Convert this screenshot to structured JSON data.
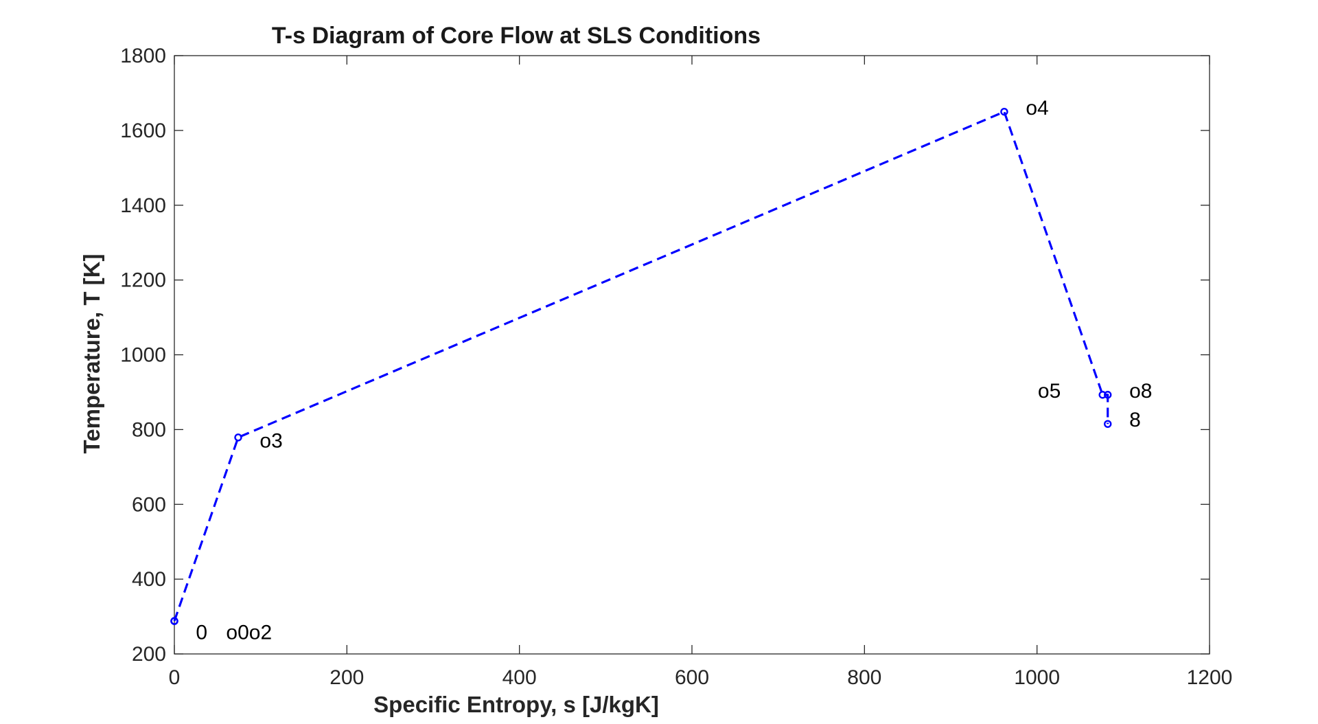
{
  "chart_data": {
    "type": "line",
    "title": "T-s Diagram of Core Flow at SLS Conditions",
    "xlabel": "Specific Entropy, s [J/kgK]",
    "ylabel": "Temperature, T [K]",
    "xlim": [
      0,
      1200
    ],
    "ylim": [
      200,
      1800
    ],
    "xticks": [
      "0",
      "200",
      "400",
      "600",
      "800",
      "1000",
      "1200"
    ],
    "yticks": [
      "200",
      "400",
      "600",
      "800",
      "1000",
      "1200",
      "1400",
      "1600",
      "1800"
    ],
    "grid": false,
    "line_color": "#0000ff",
    "line_style": "dashed",
    "marker": "circle",
    "x": [
      0,
      0,
      0,
      74,
      962,
      1076,
      1082,
      1082
    ],
    "y": [
      288,
      288,
      288,
      779,
      1650,
      893,
      893,
      815
    ],
    "annotations": [
      {
        "text": "0",
        "x": 25,
        "y": 258
      },
      {
        "text": "o0o2",
        "x": 60,
        "y": 258
      },
      {
        "text": "o3",
        "x": 99,
        "y": 770
      },
      {
        "text": "o4",
        "x": 987,
        "y": 1660
      },
      {
        "text": "o5",
        "x": 1001,
        "y": 904
      },
      {
        "text": "o8",
        "x": 1107,
        "y": 904
      },
      {
        "text": "8",
        "x": 1107,
        "y": 826
      }
    ]
  }
}
